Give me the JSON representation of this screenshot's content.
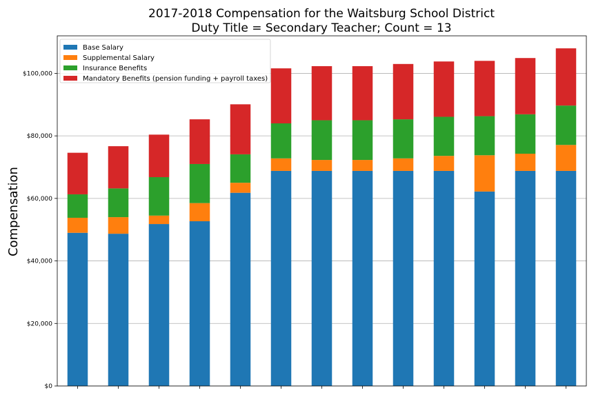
{
  "chart_data": {
    "type": "bar",
    "stacked": true,
    "title": "2017-2018 Compensation for the Waitsburg School District",
    "subtitle": "Duty Title = Secondary Teacher; Count = 13",
    "xlabel": "",
    "ylabel": "Compensation",
    "ylim": [
      0,
      112000
    ],
    "yticks": [
      "$0",
      "$20,000",
      "$40,000",
      "$60,000",
      "$80,000",
      "$100,000"
    ],
    "ytick_values": [
      0,
      20000,
      40000,
      60000,
      80000,
      100000
    ],
    "grid": "horizontal",
    "legend_position": "top-left",
    "categories": [
      "",
      "",
      "",
      "",
      "",
      "",
      "",
      "",
      "",
      "",
      "",
      "",
      ""
    ],
    "series": [
      {
        "name": "Base Salary",
        "color": "#1f77b4",
        "values": [
          49000,
          48700,
          51800,
          52700,
          61800,
          68800,
          68800,
          68800,
          68800,
          68800,
          62200,
          68800,
          68800
        ]
      },
      {
        "name": "Supplemental Salary",
        "color": "#ff7f0e",
        "values": [
          4800,
          5300,
          2700,
          5800,
          3200,
          4000,
          3500,
          3500,
          4000,
          4800,
          11600,
          5500,
          8300
        ]
      },
      {
        "name": "Insurance Benefits",
        "color": "#2ca02c",
        "values": [
          7500,
          9200,
          12300,
          12500,
          9100,
          11200,
          12700,
          12700,
          12500,
          12500,
          12500,
          12600,
          12600
        ]
      },
      {
        "name": "Mandatory Benefits (pension funding + payroll taxes)",
        "color": "#d62728",
        "values": [
          13300,
          13500,
          13600,
          14300,
          16000,
          17600,
          17300,
          17300,
          17700,
          17700,
          17700,
          18000,
          18300
        ]
      }
    ]
  }
}
